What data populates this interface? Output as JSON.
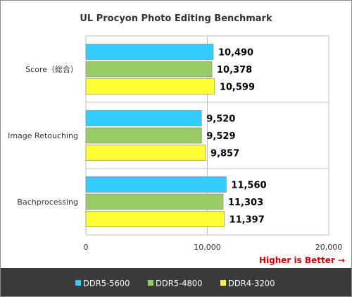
{
  "chart_data": {
    "type": "bar",
    "orientation": "horizontal",
    "title": "UL Procyon  Photo Editing Benchmark",
    "categories": [
      "Score（総合）",
      "Image Retouching",
      "Bachprocessing"
    ],
    "series": [
      {
        "name": "DDR5-5600",
        "color": "#33ccff",
        "values": [
          10490,
          9520,
          11560
        ],
        "labels": [
          "10,490",
          "9,520",
          "11,560"
        ]
      },
      {
        "name": "DDR5-4800",
        "color": "#99cc66",
        "values": [
          10378,
          9529,
          11303
        ],
        "labels": [
          "10,378",
          "9,529",
          "11,303"
        ]
      },
      {
        "name": "DDR4-3200",
        "color": "#ffff33",
        "values": [
          10599,
          9857,
          11397
        ],
        "labels": [
          "10,599",
          "9,857",
          "11,397"
        ]
      }
    ],
    "xlim": [
      0,
      20000
    ],
    "xticks": [
      0,
      10000,
      20000
    ],
    "xtick_labels": [
      "0",
      "10,000",
      "20,000"
    ],
    "grid": true,
    "legend_position": "bottom",
    "annotation": "Higher is Better →",
    "annotation_color": "#cc0000"
  }
}
